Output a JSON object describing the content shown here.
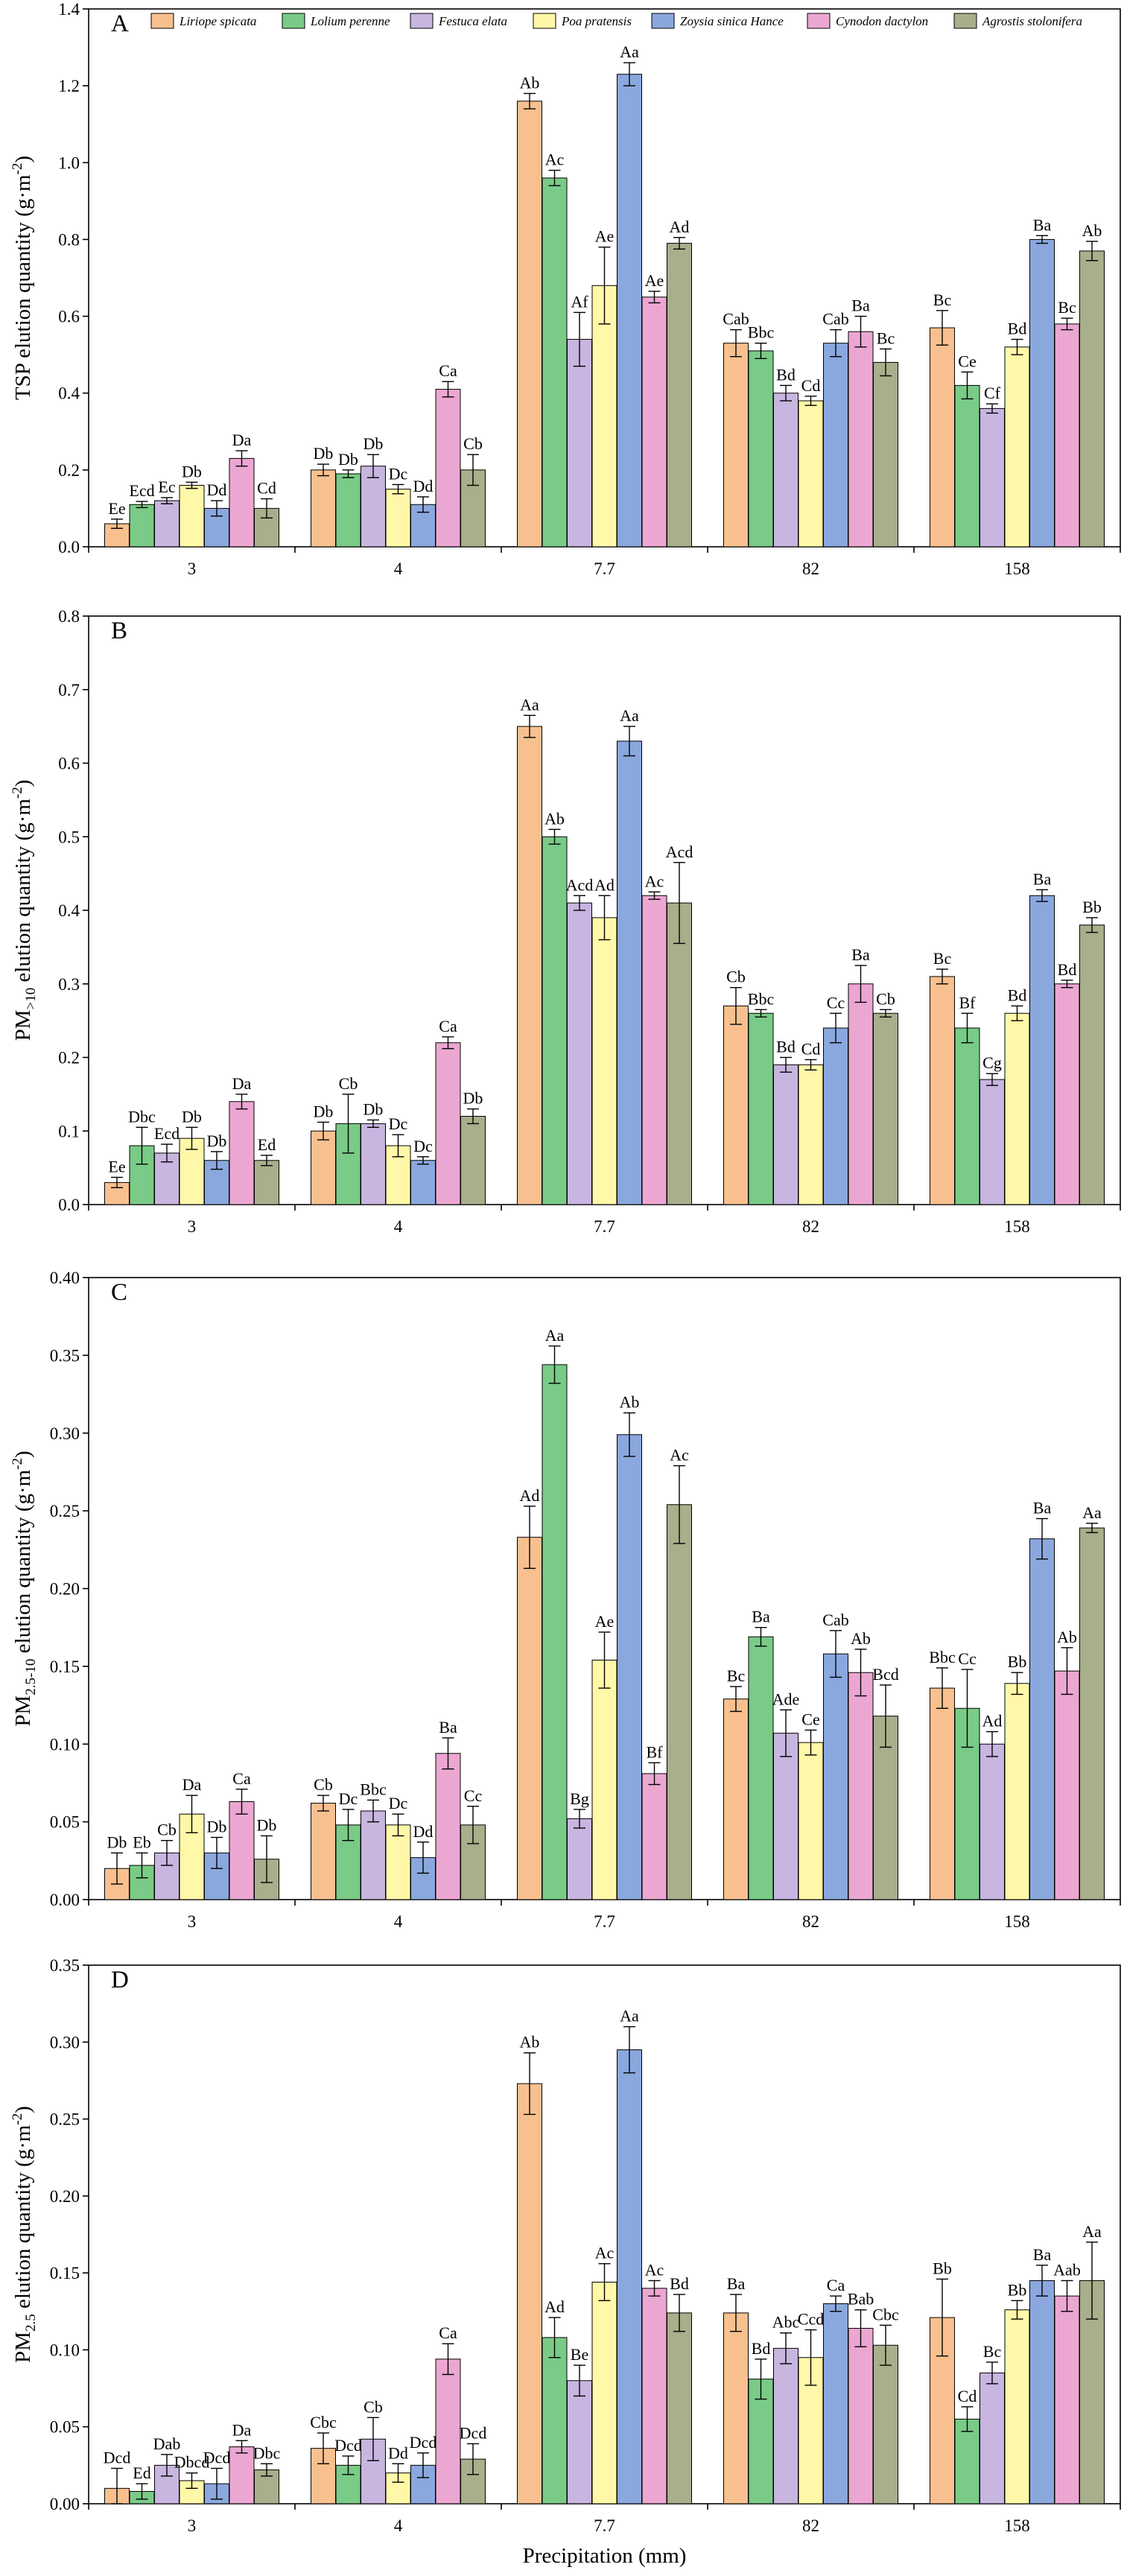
{
  "chart_data": [
    {
      "type": "bar",
      "panel": "A",
      "ylabel": "TSP elution quantity (g·m⁻²)",
      "ylabel_main": "TSP elution quantity (g·m",
      "ylabel_sup": "-2",
      "ylabel_end": ")",
      "xlabel": "",
      "ylim": [
        0,
        1.4
      ],
      "yticks": [
        "0.0",
        "0.2",
        "0.4",
        "0.6",
        "0.8",
        "1.0",
        "1.2",
        "1.4"
      ],
      "categories": [
        "3",
        "4",
        "7.7",
        "82",
        "158"
      ],
      "legend": "top",
      "series": [
        {
          "name": "Liriope spicata",
          "values": [
            0.06,
            0.2,
            1.16,
            0.53,
            0.57
          ],
          "errors": [
            0.012,
            0.015,
            0.02,
            0.035,
            0.045
          ],
          "labels": [
            "Ee",
            "Db",
            "Ab",
            "Cab",
            "Bc"
          ]
        },
        {
          "name": "Lolium perenne",
          "values": [
            0.11,
            0.19,
            0.96,
            0.51,
            0.42
          ],
          "errors": [
            0.008,
            0.01,
            0.02,
            0.02,
            0.035
          ],
          "labels": [
            "Ecd",
            "Db",
            "Ac",
            "Bbc",
            "Ce"
          ]
        },
        {
          "name": "Festuca elata",
          "values": [
            0.12,
            0.21,
            0.54,
            0.4,
            0.36
          ],
          "errors": [
            0.008,
            0.03,
            0.07,
            0.02,
            0.012
          ],
          "labels": [
            "Ec",
            "Db",
            "Af",
            "Bd",
            "Cf"
          ]
        },
        {
          "name": "Poa pratensis",
          "values": [
            0.16,
            0.15,
            0.68,
            0.38,
            0.52
          ],
          "errors": [
            0.008,
            0.012,
            0.1,
            0.012,
            0.02
          ],
          "labels": [
            "Db",
            "Dc",
            "Ae",
            "Cd",
            "Bd"
          ]
        },
        {
          "name": "Zoysia sinica Hance",
          "values": [
            0.1,
            0.11,
            1.23,
            0.53,
            0.8
          ],
          "errors": [
            0.02,
            0.02,
            0.03,
            0.035,
            0.01
          ],
          "labels": [
            "Dd",
            "Dd",
            "Aa",
            "Cab",
            "Ba"
          ]
        },
        {
          "name": "Cynodon dactylon",
          "values": [
            0.23,
            0.41,
            0.65,
            0.56,
            0.58
          ],
          "errors": [
            0.02,
            0.02,
            0.015,
            0.04,
            0.015
          ],
          "labels": [
            "Da",
            "Ca",
            "Ae",
            "Ba",
            "Bc"
          ]
        },
        {
          "name": "Agrostis stolonifera",
          "values": [
            0.1,
            0.2,
            0.79,
            0.48,
            0.77
          ],
          "errors": [
            0.025,
            0.04,
            0.015,
            0.035,
            0.025
          ],
          "labels": [
            "Cd",
            "Cb",
            "Ad",
            "Bc",
            "Ab"
          ]
        }
      ]
    },
    {
      "type": "bar",
      "panel": "B",
      "ylabel": "PM>10 elution quantity (g·m⁻²)",
      "ylabel_main": "PM",
      "ylabel_sub": ">10",
      "ylabel_rest": " elution quantity (g·m",
      "ylabel_sup": "-2",
      "ylabel_end": ")",
      "xlabel": "",
      "ylim": [
        0,
        0.8
      ],
      "yticks": [
        "0.0",
        "0.1",
        "0.2",
        "0.3",
        "0.4",
        "0.5",
        "0.6",
        "0.7",
        "0.8"
      ],
      "categories": [
        "3",
        "4",
        "7.7",
        "82",
        "158"
      ],
      "series": [
        {
          "name": "Liriope spicata",
          "values": [
            0.03,
            0.1,
            0.65,
            0.27,
            0.31
          ],
          "errors": [
            0.007,
            0.012,
            0.015,
            0.025,
            0.01
          ],
          "labels": [
            "Ee",
            "Db",
            "Aa",
            "Cb",
            "Bc"
          ]
        },
        {
          "name": "Lolium perenne",
          "values": [
            0.08,
            0.11,
            0.5,
            0.26,
            0.24
          ],
          "errors": [
            0.025,
            0.04,
            0.01,
            0.005,
            0.02
          ],
          "labels": [
            "Dbc",
            "Cb",
            "Ab",
            "Bbc",
            "Bf"
          ]
        },
        {
          "name": "Festuca elata",
          "values": [
            0.07,
            0.11,
            0.41,
            0.19,
            0.17
          ],
          "errors": [
            0.012,
            0.005,
            0.01,
            0.01,
            0.008
          ],
          "labels": [
            "Ecd",
            "Db",
            "Acd",
            "Bd",
            "Cg"
          ]
        },
        {
          "name": "Poa pratensis",
          "values": [
            0.09,
            0.08,
            0.39,
            0.19,
            0.26
          ],
          "errors": [
            0.015,
            0.015,
            0.03,
            0.007,
            0.01
          ],
          "labels": [
            "Db",
            "Dc",
            "Ad",
            "Cd",
            "Bd"
          ]
        },
        {
          "name": "Zoysia sinica Hance",
          "values": [
            0.06,
            0.06,
            0.63,
            0.24,
            0.42
          ],
          "errors": [
            0.012,
            0.005,
            0.02,
            0.02,
            0.008
          ],
          "labels": [
            "Db",
            "Dc",
            "Aa",
            "Cc",
            "Ba"
          ]
        },
        {
          "name": "Cynodon dactylon",
          "values": [
            0.14,
            0.22,
            0.42,
            0.3,
            0.3
          ],
          "errors": [
            0.01,
            0.008,
            0.005,
            0.025,
            0.005
          ],
          "labels": [
            "Da",
            "Ca",
            "Ac",
            "Ba",
            "Bd"
          ]
        },
        {
          "name": "Agrostis stolonifera",
          "values": [
            0.06,
            0.12,
            0.41,
            0.26,
            0.38
          ],
          "errors": [
            0.007,
            0.01,
            0.055,
            0.005,
            0.01
          ],
          "labels": [
            "Ed",
            "Db",
            "Acd",
            "Cb",
            "Bb"
          ]
        }
      ]
    },
    {
      "type": "bar",
      "panel": "C",
      "ylabel": "PM2.5-10 elution quantity (g·m⁻²)",
      "ylabel_main": "PM",
      "ylabel_sub": "2.5-10",
      "ylabel_rest": " elution quantity (g·m",
      "ylabel_sup": "-2",
      "ylabel_end": ")",
      "xlabel": "",
      "ylim": [
        0,
        0.4
      ],
      "yticks": [
        "0.00",
        "0.05",
        "0.10",
        "0.15",
        "0.20",
        "0.25",
        "0.30",
        "0.35",
        "0.40"
      ],
      "categories": [
        "3",
        "4",
        "7.7",
        "82",
        "158"
      ],
      "series": [
        {
          "name": "Liriope spicata",
          "values": [
            0.02,
            0.062,
            0.233,
            0.129,
            0.136
          ],
          "errors": [
            0.01,
            0.005,
            0.02,
            0.008,
            0.013
          ],
          "labels": [
            "Db",
            "Cb",
            "Ad",
            "Bc",
            "Bbc"
          ]
        },
        {
          "name": "Lolium perenne",
          "values": [
            0.022,
            0.048,
            0.344,
            0.169,
            0.123
          ],
          "errors": [
            0.008,
            0.01,
            0.012,
            0.006,
            0.025
          ],
          "labels": [
            "Eb",
            "Dc",
            "Aa",
            "Ba",
            "Cc"
          ]
        },
        {
          "name": "Festuca elata",
          "values": [
            0.03,
            0.057,
            0.052,
            0.107,
            0.1
          ],
          "errors": [
            0.008,
            0.007,
            0.006,
            0.015,
            0.008
          ],
          "labels": [
            "Cb",
            "Bbc",
            "Bg",
            "Ade",
            "Ad"
          ]
        },
        {
          "name": "Poa pratensis",
          "values": [
            0.055,
            0.048,
            0.154,
            0.101,
            0.139
          ],
          "errors": [
            0.012,
            0.007,
            0.018,
            0.008,
            0.007
          ],
          "labels": [
            "Da",
            "Dc",
            "Ae",
            "Ce",
            "Bb"
          ]
        },
        {
          "name": "Zoysia sinica Hance",
          "values": [
            0.03,
            0.027,
            0.299,
            0.158,
            0.232
          ],
          "errors": [
            0.01,
            0.01,
            0.014,
            0.015,
            0.013
          ],
          "labels": [
            "Db",
            "Dd",
            "Ab",
            "Cab",
            "Ba"
          ]
        },
        {
          "name": "Cynodon dactylon",
          "values": [
            0.063,
            0.094,
            0.081,
            0.146,
            0.147
          ],
          "errors": [
            0.008,
            0.01,
            0.007,
            0.015,
            0.015
          ],
          "labels": [
            "Ca",
            "Ba",
            "Bf",
            "Ab",
            "Ab"
          ]
        },
        {
          "name": "Agrostis stolonifera",
          "values": [
            0.026,
            0.048,
            0.254,
            0.118,
            0.239
          ],
          "errors": [
            0.015,
            0.012,
            0.025,
            0.02,
            0.003
          ],
          "labels": [
            "Db",
            "Cc",
            "Ac",
            "Bcd",
            "Aa"
          ]
        }
      ]
    },
    {
      "type": "bar",
      "panel": "D",
      "ylabel": "PM2.5 elution quantity (g·m⁻²)",
      "ylabel_main": "PM",
      "ylabel_sub": "2.5",
      "ylabel_rest": " elution quantity (g·m",
      "ylabel_sup": "-2",
      "ylabel_end": ")",
      "xlabel": "Precipitation (mm)",
      "ylim": [
        0,
        0.35
      ],
      "yticks": [
        "0.00",
        "0.05",
        "0.10",
        "0.15",
        "0.20",
        "0.25",
        "0.30",
        "0.35"
      ],
      "categories": [
        "3",
        "4",
        "7.7",
        "82",
        "158"
      ],
      "series": [
        {
          "name": "Liriope spicata",
          "values": [
            0.01,
            0.036,
            0.273,
            0.124,
            0.121
          ],
          "errors": [
            0.013,
            0.01,
            0.02,
            0.012,
            0.025
          ],
          "labels": [
            "Dcd",
            "Cbc",
            "Ab",
            "Ba",
            "Bb"
          ]
        },
        {
          "name": "Lolium perenne",
          "values": [
            0.008,
            0.025,
            0.108,
            0.081,
            0.055
          ],
          "errors": [
            0.005,
            0.006,
            0.013,
            0.013,
            0.008
          ],
          "labels": [
            "Ed",
            "Dcd",
            "Ad",
            "Bd",
            "Cd"
          ]
        },
        {
          "name": "Festuca elata",
          "values": [
            0.025,
            0.042,
            0.08,
            0.101,
            0.085
          ],
          "errors": [
            0.007,
            0.014,
            0.01,
            0.01,
            0.007
          ],
          "labels": [
            "Dab",
            "Cb",
            "Be",
            "Abc",
            "Bc"
          ]
        },
        {
          "name": "Poa pratensis",
          "values": [
            0.015,
            0.02,
            0.144,
            0.095,
            0.126
          ],
          "errors": [
            0.005,
            0.006,
            0.012,
            0.018,
            0.006
          ],
          "labels": [
            "Dbcd",
            "Dd",
            "Ac",
            "Ccd",
            "Bb"
          ]
        },
        {
          "name": "Zoysia sinica Hance",
          "values": [
            0.013,
            0.025,
            0.295,
            0.13,
            0.145
          ],
          "errors": [
            0.01,
            0.008,
            0.015,
            0.005,
            0.01
          ],
          "labels": [
            "Dcd",
            "Dcd",
            "Aa",
            "Ca",
            "Ba"
          ]
        },
        {
          "name": "Cynodon dactylon",
          "values": [
            0.037,
            0.094,
            0.14,
            0.114,
            0.135
          ],
          "errors": [
            0.004,
            0.01,
            0.005,
            0.012,
            0.01
          ],
          "labels": [
            "Da",
            "Ca",
            "Ac",
            "Bab",
            "Aab"
          ]
        },
        {
          "name": "Agrostis stolonifera",
          "values": [
            0.022,
            0.029,
            0.124,
            0.103,
            0.145
          ],
          "errors": [
            0.004,
            0.01,
            0.012,
            0.013,
            0.025
          ],
          "labels": [
            "Dbc",
            "Dcd",
            "Bd",
            "Cbc",
            "Aa"
          ]
        }
      ]
    }
  ],
  "legend": {
    "entries": [
      "Liriope spicata",
      "Lolium perenne",
      "Festuca elata",
      "Poa pratensis",
      "Zoysia sinica Hance",
      "Cynodon dactylon",
      "Agrostis stolonifera"
    ],
    "colors": [
      "#F8C08F",
      "#7ACB87",
      "#C8B5E0",
      "#FFF8A8",
      "#8AA8DE",
      "#EBA7D2",
      "#A7AF8B"
    ]
  },
  "panel_labels": [
    "A",
    "B",
    "C",
    "D"
  ]
}
